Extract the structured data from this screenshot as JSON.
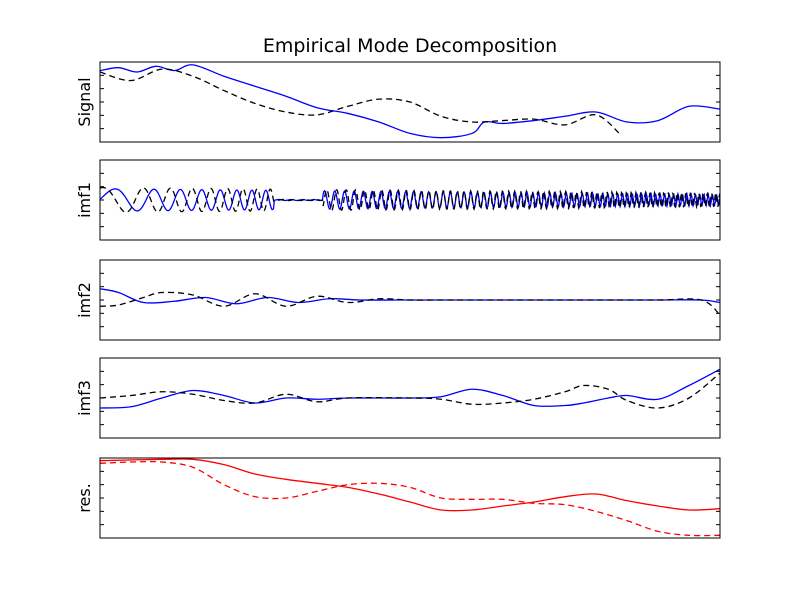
{
  "chart_data": {
    "type": "line",
    "title": "Empirical Mode Decomposition",
    "xlim": [
      0,
      1
    ],
    "x_ticks_labeled": false,
    "grid": false,
    "panels": [
      {
        "ylabel": "Signal",
        "ylim": [
          -1.6,
          1.2
        ],
        "series": [
          {
            "style": "solid",
            "color": "#0000ff",
            "x": [
              0,
              0.03,
              0.06,
              0.09,
              0.12,
              0.15,
              0.2,
              0.25,
              0.3,
              0.35,
              0.4,
              0.45,
              0.5,
              0.55,
              0.6,
              0.62,
              0.65,
              0.7,
              0.75,
              0.8,
              0.85,
              0.9,
              0.95,
              1.0
            ],
            "y": [
              0.9,
              1.0,
              0.85,
              1.05,
              0.9,
              1.1,
              0.7,
              0.35,
              0.0,
              -0.4,
              -0.6,
              -0.9,
              -1.3,
              -1.45,
              -1.3,
              -0.9,
              -0.95,
              -0.85,
              -0.7,
              -0.55,
              -0.9,
              -0.85,
              -0.35,
              -0.45
            ]
          },
          {
            "style": "dashed",
            "color": "#000000",
            "x": [
              0,
              0.05,
              0.1,
              0.15,
              0.2,
              0.25,
              0.3,
              0.35,
              0.4,
              0.45,
              0.5,
              0.55,
              0.6,
              0.65,
              0.7,
              0.75,
              0.8,
              0.84
            ],
            "y": [
              0.85,
              0.55,
              0.95,
              0.7,
              0.2,
              -0.25,
              -0.55,
              -0.65,
              -0.35,
              -0.1,
              -0.2,
              -0.7,
              -0.9,
              -0.85,
              -0.8,
              -1.0,
              -0.65,
              -1.35
            ]
          }
        ]
      },
      {
        "ylabel": "imf1",
        "ylim": [
          -1.6,
          1.6
        ],
        "series": [
          {
            "style": "solid",
            "color": "#0000ff",
            "amplitude": 0.45,
            "freq_start": 8,
            "freq_end": 150,
            "decay": 0.5,
            "phase": 0.0
          },
          {
            "style": "dashed",
            "color": "#000000",
            "amplitude": 0.5,
            "freq_start": 10,
            "freq_end": 150,
            "decay": 0.45,
            "phase": 1.2
          }
        ]
      },
      {
        "ylabel": "imf2",
        "ylim": [
          -1.6,
          1.6
        ],
        "series": [
          {
            "style": "solid",
            "color": "#0000ff",
            "x": [
              0,
              0.03,
              0.07,
              0.12,
              0.17,
              0.22,
              0.27,
              0.32,
              0.37,
              0.42,
              0.48,
              0.55,
              0.62,
              0.7,
              0.8,
              0.9,
              0.97,
              1.0
            ],
            "y": [
              0.45,
              0.3,
              -0.1,
              -0.05,
              0.1,
              -0.15,
              0.1,
              -0.1,
              0.05,
              0.0,
              0.0,
              0.0,
              0.0,
              0.0,
              0.0,
              0.0,
              0.0,
              -0.1
            ]
          },
          {
            "style": "dashed",
            "color": "#000000",
            "x": [
              0,
              0.03,
              0.07,
              0.1,
              0.15,
              0.2,
              0.25,
              0.3,
              0.35,
              0.4,
              0.45,
              0.5,
              0.55,
              0.6,
              0.7,
              0.8,
              0.9,
              0.97,
              1.0
            ],
            "y": [
              -0.25,
              -0.2,
              0.1,
              0.3,
              0.2,
              -0.25,
              0.25,
              -0.25,
              0.15,
              -0.1,
              0.05,
              0.0,
              0.0,
              0.0,
              0.0,
              0.0,
              0.0,
              0.0,
              -0.6
            ]
          }
        ]
      },
      {
        "ylabel": "imf3",
        "ylim": [
          -1.6,
          1.6
        ],
        "series": [
          {
            "style": "solid",
            "color": "#0000ff",
            "x": [
              0,
              0.05,
              0.1,
              0.15,
              0.2,
              0.25,
              0.3,
              0.35,
              0.4,
              0.5,
              0.55,
              0.6,
              0.65,
              0.7,
              0.75,
              0.78,
              0.82,
              0.85,
              0.9,
              0.95,
              1.0
            ],
            "y": [
              -0.4,
              -0.35,
              0.0,
              0.3,
              0.1,
              -0.2,
              0.0,
              -0.05,
              0.0,
              0.0,
              0.05,
              0.35,
              0.1,
              -0.3,
              -0.3,
              -0.2,
              0.0,
              0.1,
              -0.05,
              0.5,
              1.15
            ]
          },
          {
            "style": "dashed",
            "color": "#000000",
            "x": [
              0,
              0.05,
              0.1,
              0.15,
              0.2,
              0.25,
              0.3,
              0.35,
              0.4,
              0.5,
              0.55,
              0.6,
              0.65,
              0.7,
              0.75,
              0.78,
              0.82,
              0.85,
              0.9,
              0.95,
              1.0
            ],
            "y": [
              0.0,
              0.1,
              0.25,
              0.15,
              -0.1,
              -0.2,
              0.15,
              -0.15,
              0.0,
              0.0,
              -0.05,
              -0.25,
              -0.2,
              -0.05,
              0.25,
              0.5,
              0.35,
              -0.1,
              -0.4,
              0.0,
              1.0
            ]
          }
        ]
      },
      {
        "ylabel": "res.",
        "ylim": [
          -1.6,
          1.4
        ],
        "series": [
          {
            "style": "solid",
            "color": "#ff0000",
            "x": [
              0,
              0.1,
              0.15,
              0.2,
              0.25,
              0.3,
              0.35,
              0.4,
              0.45,
              0.5,
              0.55,
              0.6,
              0.65,
              0.7,
              0.75,
              0.8,
              0.85,
              0.9,
              0.95,
              1.0
            ],
            "y": [
              1.3,
              1.35,
              1.35,
              1.15,
              0.8,
              0.6,
              0.45,
              0.3,
              0.05,
              -0.25,
              -0.55,
              -0.55,
              -0.4,
              -0.25,
              -0.05,
              0.05,
              -0.2,
              -0.4,
              -0.55,
              -0.5
            ]
          },
          {
            "style": "dashed",
            "color": "#ff0000",
            "x": [
              0,
              0.05,
              0.1,
              0.15,
              0.2,
              0.25,
              0.3,
              0.35,
              0.4,
              0.45,
              0.5,
              0.55,
              0.6,
              0.65,
              0.7,
              0.75,
              0.8,
              0.85,
              0.9,
              0.95,
              1.0
            ],
            "y": [
              1.2,
              1.25,
              1.25,
              1.05,
              0.4,
              -0.05,
              -0.1,
              0.15,
              0.4,
              0.45,
              0.3,
              -0.1,
              -0.15,
              -0.15,
              -0.3,
              -0.35,
              -0.6,
              -0.95,
              -1.35,
              -1.5,
              -1.5
            ]
          }
        ]
      }
    ]
  }
}
